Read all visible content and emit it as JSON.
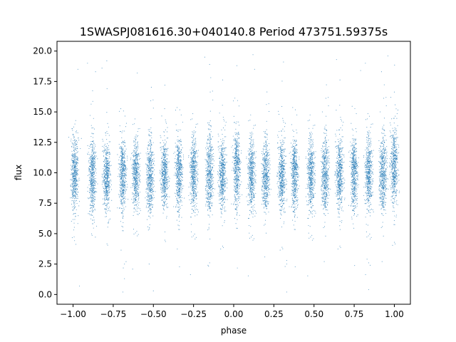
{
  "chart_data": {
    "type": "scatter",
    "title": "1SWASPJ081616.30+040140.8 Period 473751.59375s",
    "xlabel": "phase",
    "ylabel": "flux",
    "xlim": [
      -1.1,
      1.1
    ],
    "ylim": [
      -0.8,
      20.8
    ],
    "x_ticks": [
      -1.0,
      -0.75,
      -0.5,
      -0.25,
      0.0,
      0.25,
      0.5,
      0.75,
      1.0
    ],
    "x_tick_labels": [
      "−1.00",
      "−0.75",
      "−0.50",
      "−0.25",
      "0.00",
      "0.25",
      "0.50",
      "0.75",
      "1.00"
    ],
    "y_ticks": [
      0.0,
      2.5,
      5.0,
      7.5,
      10.0,
      12.5,
      15.0,
      17.5,
      20.0
    ],
    "y_tick_labels": [
      "0.0",
      "2.5",
      "5.0",
      "7.5",
      "10.0",
      "12.5",
      "15.0",
      "17.5",
      "20.0"
    ],
    "grid": false,
    "point_color": "#1f77b4",
    "clusters": [
      {
        "x": -0.99,
        "center": 9.8,
        "spread": 1.5
      },
      {
        "x": -0.88,
        "center": 9.7,
        "spread": 1.5
      },
      {
        "x": -0.79,
        "center": 9.6,
        "spread": 1.4
      },
      {
        "x": -0.69,
        "center": 9.7,
        "spread": 1.5
      },
      {
        "x": -0.61,
        "center": 9.8,
        "spread": 1.4
      },
      {
        "x": -0.52,
        "center": 9.7,
        "spread": 1.5
      },
      {
        "x": -0.43,
        "center": 9.9,
        "spread": 1.4
      },
      {
        "x": -0.34,
        "center": 9.8,
        "spread": 1.5
      },
      {
        "x": -0.25,
        "center": 9.9,
        "spread": 1.5
      },
      {
        "x": -0.15,
        "center": 10.0,
        "spread": 1.6
      },
      {
        "x": -0.07,
        "center": 9.8,
        "spread": 1.5
      },
      {
        "x": 0.02,
        "center": 10.2,
        "spread": 1.6
      },
      {
        "x": 0.11,
        "center": 9.8,
        "spread": 1.5
      },
      {
        "x": 0.2,
        "center": 9.8,
        "spread": 1.4
      },
      {
        "x": 0.3,
        "center": 9.7,
        "spread": 1.5
      },
      {
        "x": 0.38,
        "center": 9.8,
        "spread": 1.5
      },
      {
        "x": 0.48,
        "center": 9.8,
        "spread": 1.5
      },
      {
        "x": 0.57,
        "center": 9.9,
        "spread": 1.5
      },
      {
        "x": 0.66,
        "center": 9.8,
        "spread": 1.5
      },
      {
        "x": 0.75,
        "center": 9.9,
        "spread": 1.5
      },
      {
        "x": 0.84,
        "center": 9.9,
        "spread": 1.5
      },
      {
        "x": 0.93,
        "center": 9.9,
        "spread": 1.5
      },
      {
        "x": 1.0,
        "center": 10.5,
        "spread": 1.6
      }
    ],
    "low_outliers": [
      {
        "x": -0.68,
        "y": 2.5
      },
      {
        "x": -0.67,
        "y": 2.7
      },
      {
        "x": -0.68,
        "y": 1.3
      },
      {
        "x": -0.16,
        "y": 2.4
      },
      {
        "x": -0.15,
        "y": 2.6
      },
      {
        "x": 0.33,
        "y": 2.5
      },
      {
        "x": 0.33,
        "y": 2.8
      },
      {
        "x": 0.32,
        "y": 2.3
      },
      {
        "x": 0.84,
        "y": 2.6
      },
      {
        "x": 0.83,
        "y": 2.9
      },
      {
        "x": 0.85,
        "y": 2.4
      },
      {
        "x": -0.5,
        "y": 0.3
      },
      {
        "x": -0.69,
        "y": 0.2
      },
      {
        "x": 0.33,
        "y": 0.2
      },
      {
        "x": 0.84,
        "y": 0.4
      },
      {
        "x": -0.96,
        "y": 0.7
      }
    ],
    "high_outliers": [
      {
        "x": -0.97,
        "y": 18.5
      },
      {
        "x": -0.91,
        "y": 19.0
      },
      {
        "x": -0.86,
        "y": 18.3
      },
      {
        "x": -0.82,
        "y": 18.6
      },
      {
        "x": -0.79,
        "y": 19.2
      },
      {
        "x": -0.6,
        "y": 18.2
      },
      {
        "x": -0.18,
        "y": 19.5
      },
      {
        "x": -0.15,
        "y": 18.9
      },
      {
        "x": 0.02,
        "y": 18.8
      },
      {
        "x": 0.12,
        "y": 19.7
      },
      {
        "x": 0.13,
        "y": 18.5
      },
      {
        "x": 0.31,
        "y": 19.1
      },
      {
        "x": 0.64,
        "y": 19.3
      },
      {
        "x": 0.79,
        "y": 18.4
      },
      {
        "x": 0.82,
        "y": 19.0
      },
      {
        "x": 0.92,
        "y": 18.3
      },
      {
        "x": 0.96,
        "y": 19.6
      }
    ]
  }
}
